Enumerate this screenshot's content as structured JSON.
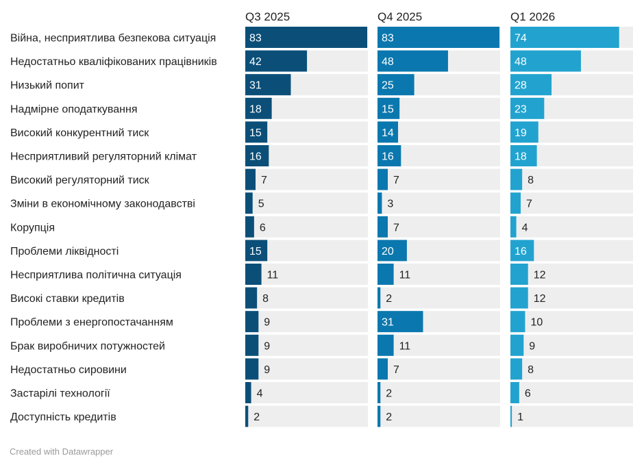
{
  "chart_data": {
    "type": "bar",
    "categories": [
      "Війна, несприятлива безпекова ситуація",
      "Недостатньо кваліфікованих працівників",
      "Низький попит",
      "Надмірне оподаткування",
      "Високий конкурентний тиск",
      "Несприятливий регуляторний клімат",
      "Високий регуляторний тиск",
      "Зміни в економічному законодавстві",
      "Корупція",
      "Проблеми ліквідності",
      "Несприятлива політична ситуація",
      "Високі ставки кредитів",
      "Проблеми з енергопостачанням",
      "Брак виробничих потужностей",
      "Недостатньо сировини",
      "Застарілі технології",
      "Доступність кредитів"
    ],
    "series": [
      {
        "name": "Q3 2025",
        "color": "#0b4f79",
        "values": [
          83,
          42,
          31,
          18,
          15,
          16,
          7,
          5,
          6,
          15,
          11,
          8,
          9,
          9,
          9,
          4,
          2
        ]
      },
      {
        "name": "Q4 2025",
        "color": "#0a78ae",
        "values": [
          83,
          48,
          25,
          15,
          14,
          16,
          7,
          3,
          7,
          20,
          11,
          2,
          31,
          11,
          7,
          2,
          2
        ]
      },
      {
        "name": "Q1 2026",
        "color": "#22a3cf",
        "values": [
          74,
          48,
          28,
          23,
          19,
          18,
          8,
          7,
          4,
          16,
          12,
          12,
          10,
          9,
          8,
          6,
          1
        ]
      }
    ],
    "xlim": [
      0,
      83
    ],
    "background_bar_color": "#eeeeee",
    "layout": "small multiples, one column per series"
  },
  "footer": {
    "credit": "Created with Datawrapper"
  }
}
